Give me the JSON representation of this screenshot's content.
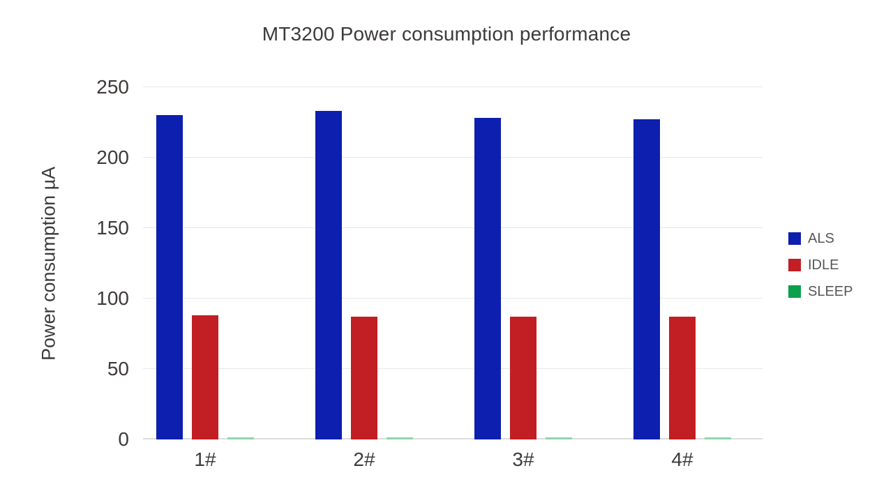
{
  "chart_data": {
    "type": "bar",
    "title": "MT3200 Power consumption performance",
    "xlabel": "",
    "ylabel": "Power consumption µA",
    "categories": [
      "1#",
      "2#",
      "3#",
      "4#"
    ],
    "series": [
      {
        "name": "ALS",
        "color": "#0c1fae",
        "values": [
          230,
          233,
          228,
          227
        ]
      },
      {
        "name": "IDLE",
        "color": "#c11f24",
        "values": [
          88,
          87,
          87,
          87
        ]
      },
      {
        "name": "SLEEP",
        "color": "#0ba04c",
        "bar_color": "#8fd5a9",
        "values": [
          1.5,
          1.5,
          1.5,
          1.5
        ]
      }
    ],
    "ylim": [
      0,
      250
    ],
    "yticks": [
      0,
      50,
      100,
      150,
      200,
      250
    ],
    "grid": "horizontal",
    "legend_position": "right",
    "background": "#ffffff",
    "grid_color": "#e8e8e8",
    "axis_color": "#dcdcdc",
    "text_color": "#3d3a39",
    "legend_text_color": "#575757"
  }
}
